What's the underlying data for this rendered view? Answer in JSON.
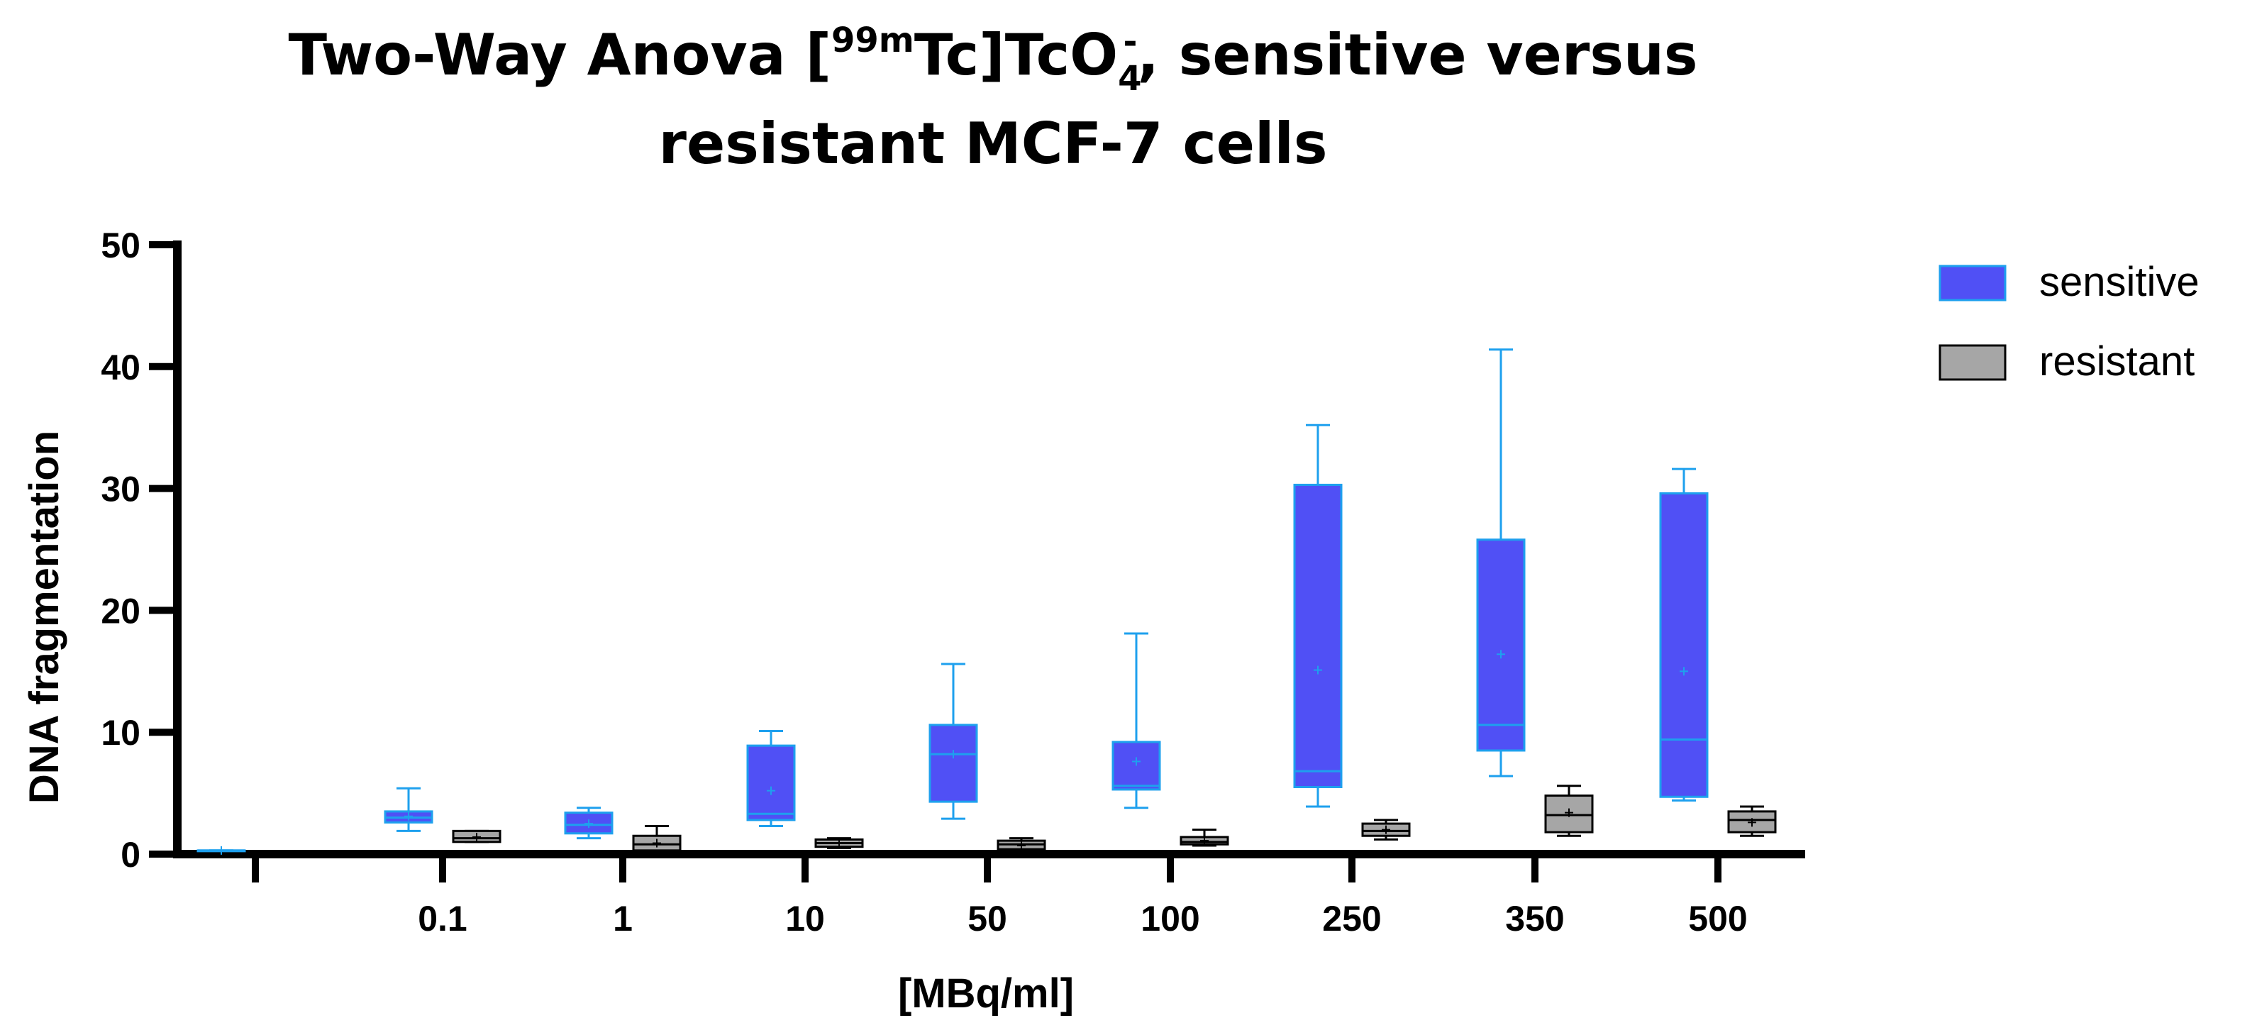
{
  "chart_data": {
    "type": "box",
    "title": {
      "line1_prefix": "Two-Way Anova [",
      "isotope_sup": "99m",
      "line1_mid": "Tc]TcO",
      "sub": "4",
      "sup_charge": "-",
      "line1_suffix": ", sensitive versus",
      "line2": "resistant MCF-7 cells"
    },
    "xlabel": "[MBq/ml]",
    "ylabel": "DNA fragmentation",
    "ylim": [
      0,
      50
    ],
    "yticks": [
      0,
      10,
      20,
      30,
      40,
      50
    ],
    "categories": [
      "",
      "0.1",
      "1",
      "10",
      "50",
      "100",
      "250",
      "350",
      "500"
    ],
    "series": [
      {
        "name": "sensitive",
        "fill": "#5050f5",
        "stroke": "#1ea0ee",
        "boxes": [
          {
            "min": 0.3,
            "q1": 0.3,
            "median": 0.3,
            "q3": 0.3,
            "max": 0.3,
            "mean": 0.3
          },
          {
            "min": 1.9,
            "q1": 2.6,
            "median": 3.0,
            "q3": 3.5,
            "max": 5.4,
            "mean": 3.1
          },
          {
            "min": 1.3,
            "q1": 1.7,
            "median": 2.4,
            "q3": 3.4,
            "max": 3.8,
            "mean": 2.5
          },
          {
            "min": 2.3,
            "q1": 2.8,
            "median": 3.3,
            "q3": 8.9,
            "max": 10.1,
            "mean": 5.2
          },
          {
            "min": 2.9,
            "q1": 4.3,
            "median": 8.2,
            "q3": 10.6,
            "max": 15.6,
            "mean": 8.2
          },
          {
            "min": 3.8,
            "q1": 5.3,
            "median": 5.6,
            "q3": 9.2,
            "max": 18.1,
            "mean": 7.6
          },
          {
            "min": 3.9,
            "q1": 5.5,
            "median": 6.8,
            "q3": 30.3,
            "max": 35.2,
            "mean": 15.1
          },
          {
            "min": 6.4,
            "q1": 8.5,
            "median": 10.6,
            "q3": 25.8,
            "max": 41.4,
            "mean": 16.4
          },
          {
            "min": 4.4,
            "q1": 4.7,
            "median": 9.4,
            "q3": 29.6,
            "max": 31.6,
            "mean": 15.0
          }
        ]
      },
      {
        "name": "resistant",
        "fill": "#a6a6a6",
        "stroke": "#000000",
        "boxes": [
          null,
          {
            "min": 1.0,
            "q1": 1.0,
            "median": 1.3,
            "q3": 1.9,
            "max": 1.9,
            "mean": 1.4
          },
          {
            "min": 0.3,
            "q1": 0.3,
            "median": 0.8,
            "q3": 1.5,
            "max": 2.3,
            "mean": 0.9
          },
          {
            "min": 0.5,
            "q1": 0.6,
            "median": 0.9,
            "q3": 1.2,
            "max": 1.3,
            "mean": 0.9
          },
          {
            "min": 0.3,
            "q1": 0.4,
            "median": 0.8,
            "q3": 1.1,
            "max": 1.3,
            "mean": 0.7
          },
          {
            "min": 0.7,
            "q1": 0.8,
            "median": 1.0,
            "q3": 1.4,
            "max": 2.0,
            "mean": 1.1
          },
          {
            "min": 1.2,
            "q1": 1.5,
            "median": 1.9,
            "q3": 2.5,
            "max": 2.8,
            "mean": 2.0
          },
          {
            "min": 1.5,
            "q1": 1.8,
            "median": 3.2,
            "q3": 4.8,
            "max": 5.6,
            "mean": 3.4
          },
          {
            "min": 1.5,
            "q1": 1.8,
            "median": 2.8,
            "q3": 3.5,
            "max": 3.9,
            "mean": 2.6
          }
        ]
      }
    ],
    "legend": {
      "position": "top-right",
      "entries": [
        "sensitive",
        "resistant"
      ]
    }
  }
}
